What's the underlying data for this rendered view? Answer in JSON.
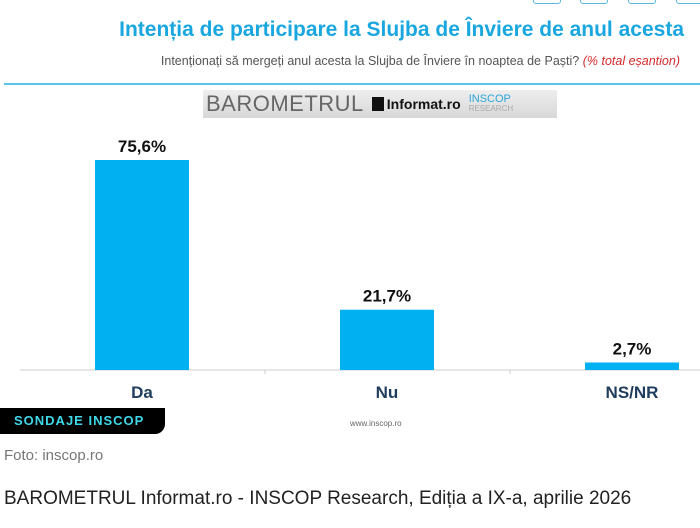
{
  "header": {
    "title": "Intenția de participare la Slujba de Înviere de anul acesta",
    "subtitle": "Intenționați să mergeți anul acesta la Slujba de Înviere în noaptea de Paști?",
    "subtitle_note": "(% total eșantion)"
  },
  "logo": {
    "barometrul": "BAROMETRUL",
    "informat": "Informat.ro",
    "inscop": "INSCOP",
    "research": "RESEARCH"
  },
  "footer": {
    "badge": "SONDAJE INSCOP",
    "website": "www.inscop.ro",
    "photo_credit": "Foto: inscop.ro",
    "caption": "BAROMETRUL Informat.ro - INSCOP Research, Ediția a IX-a, aprilie 2026"
  },
  "colors": {
    "bar": "#00b0f0",
    "title": "#1aa7e0"
  },
  "chart_data": {
    "type": "bar",
    "title": "Intenția de participare la Slujba de Înviere de anul acesta",
    "categories": [
      "Da",
      "Nu",
      "NS/NR"
    ],
    "values": [
      75.6,
      21.7,
      2.7
    ],
    "labels": [
      "75,6%",
      "21,7%",
      "2,7%"
    ],
    "ylim": [
      0,
      80
    ],
    "grid": false
  }
}
